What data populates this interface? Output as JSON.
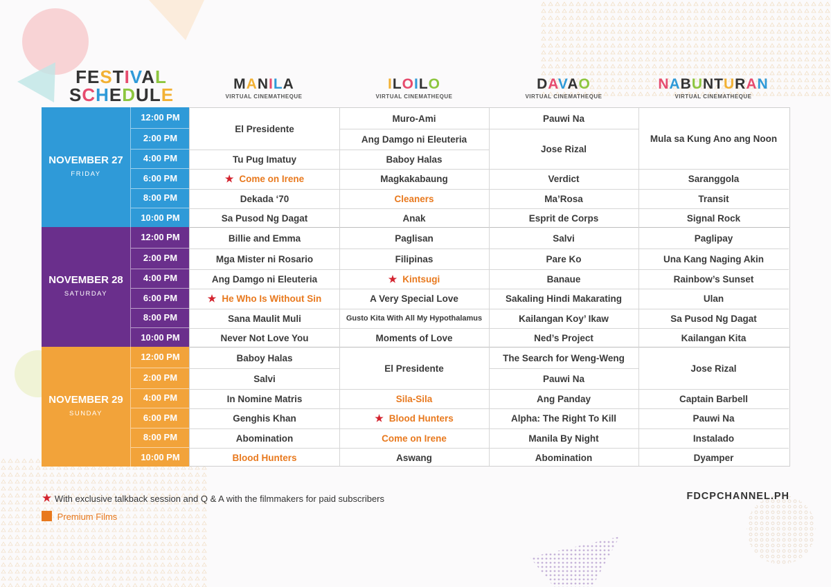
{
  "title": {
    "line1": "FESTIVAL",
    "line2": "SCHEDULE"
  },
  "colors": {
    "friday": "#2f9ad8",
    "saturday": "#6a2f8c",
    "sunday": "#f2a33a",
    "premium": "#e8791e",
    "star": "#d3232e"
  },
  "cities": [
    {
      "name": "MANILA",
      "sub": "VIRTUAL CINEMATHEQUE"
    },
    {
      "name": "ILOILO",
      "sub": "VIRTUAL CINEMATHEQUE"
    },
    {
      "name": "DAVAO",
      "sub": "VIRTUAL CINEMATHEQUE"
    },
    {
      "name": "NABUNTURAN",
      "sub": "VIRTUAL CINEMATHEQUE"
    }
  ],
  "times": [
    "12:00 PM",
    "2:00 PM",
    "4:00 PM",
    "6:00 PM",
    "8:00 PM",
    "10:00 PM"
  ],
  "days": [
    {
      "date": "NOVEMBER 27",
      "weekday": "FRIDAY"
    },
    {
      "date": "NOVEMBER 28",
      "weekday": "SATURDAY"
    },
    {
      "date": "NOVEMBER 29",
      "weekday": "SUNDAY"
    }
  ],
  "schedule": [
    [
      [
        {
          "title": "El Presidente",
          "span": 2
        },
        {
          "title": "Tu Pug Imatuy"
        },
        {
          "title": "Come on Irene",
          "premium": true,
          "star": true
        },
        {
          "title": "Dekada ‘70"
        },
        {
          "title": "Sa Pusod Ng Dagat"
        }
      ],
      [
        {
          "title": "Muro-Ami"
        },
        {
          "title": "Ang Damgo ni Eleuteria"
        },
        {
          "title": "Baboy Halas"
        },
        {
          "title": "Magkakabaung"
        },
        {
          "title": "Cleaners",
          "premium": true
        },
        {
          "title": "Anak"
        }
      ],
      [
        {
          "title": "Pauwi Na"
        },
        {
          "title": "Jose Rizal",
          "span": 2
        },
        {
          "title": "Verdict"
        },
        {
          "title": "Ma’Rosa"
        },
        {
          "title": "Esprit de Corps"
        }
      ],
      [
        {
          "title": "Mula sa Kung Ano ang Noon",
          "span": 3
        },
        {
          "title": "Saranggola"
        },
        {
          "title": "Transit"
        },
        {
          "title": "Signal Rock"
        }
      ]
    ],
    [
      [
        {
          "title": "Billie and Emma"
        },
        {
          "title": "Mga Mister ni Rosario"
        },
        {
          "title": "Ang Damgo ni Eleuteria"
        },
        {
          "title": "He Who Is Without Sin",
          "premium": true,
          "star": true
        },
        {
          "title": "Sana Maulit Muli"
        },
        {
          "title": "Never Not Love You"
        }
      ],
      [
        {
          "title": "Paglisan"
        },
        {
          "title": "Filipinas"
        },
        {
          "title": "Kintsugi",
          "premium": true,
          "star": true
        },
        {
          "title": "A Very Special Love"
        },
        {
          "title": "Gusto Kita With All My Hypothalamus",
          "small": true
        },
        {
          "title": "Moments of Love"
        }
      ],
      [
        {
          "title": "Salvi"
        },
        {
          "title": "Pare Ko"
        },
        {
          "title": "Banaue"
        },
        {
          "title": "Sakaling Hindi Makarating"
        },
        {
          "title": "Kailangan Koy’ Ikaw"
        },
        {
          "title": "Ned’s Project"
        }
      ],
      [
        {
          "title": "Paglipay"
        },
        {
          "title": "Una Kang Naging Akin"
        },
        {
          "title": "Rainbow’s Sunset"
        },
        {
          "title": "Ulan"
        },
        {
          "title": "Sa Pusod Ng Dagat"
        },
        {
          "title": "Kailangan Kita"
        }
      ]
    ],
    [
      [
        {
          "title": "Baboy Halas"
        },
        {
          "title": "Salvi"
        },
        {
          "title": "In Nomine Matris"
        },
        {
          "title": "Genghis Khan"
        },
        {
          "title": "Abomination"
        },
        {
          "title": "Blood Hunters",
          "premium": true
        }
      ],
      [
        {
          "title": "El Presidente",
          "span": 2
        },
        {
          "title": "Sila-Sila",
          "premium": true
        },
        {
          "title": "Blood Hunters",
          "premium": true,
          "star": true
        },
        {
          "title": "Come on Irene",
          "premium": true
        },
        {
          "title": "Aswang"
        }
      ],
      [
        {
          "title": "The Search for Weng-Weng"
        },
        {
          "title": "Pauwi Na"
        },
        {
          "title": "Ang Panday"
        },
        {
          "title": "Alpha: The Right To Kill"
        },
        {
          "title": "Manila By Night"
        },
        {
          "title": "Abomination"
        }
      ],
      [
        {
          "title": "Jose Rizal",
          "span": 2
        },
        {
          "title": "Captain Barbell"
        },
        {
          "title": "Pauwi Na"
        },
        {
          "title": "Instalado"
        },
        {
          "title": "Dyamper"
        }
      ]
    ]
  ],
  "legend": {
    "star_text": "With exclusive talkback session and Q & A with the filmmakers for paid subscribers",
    "premium_text": "Premium Films"
  },
  "website": "FDCPCHANNEL.PH"
}
